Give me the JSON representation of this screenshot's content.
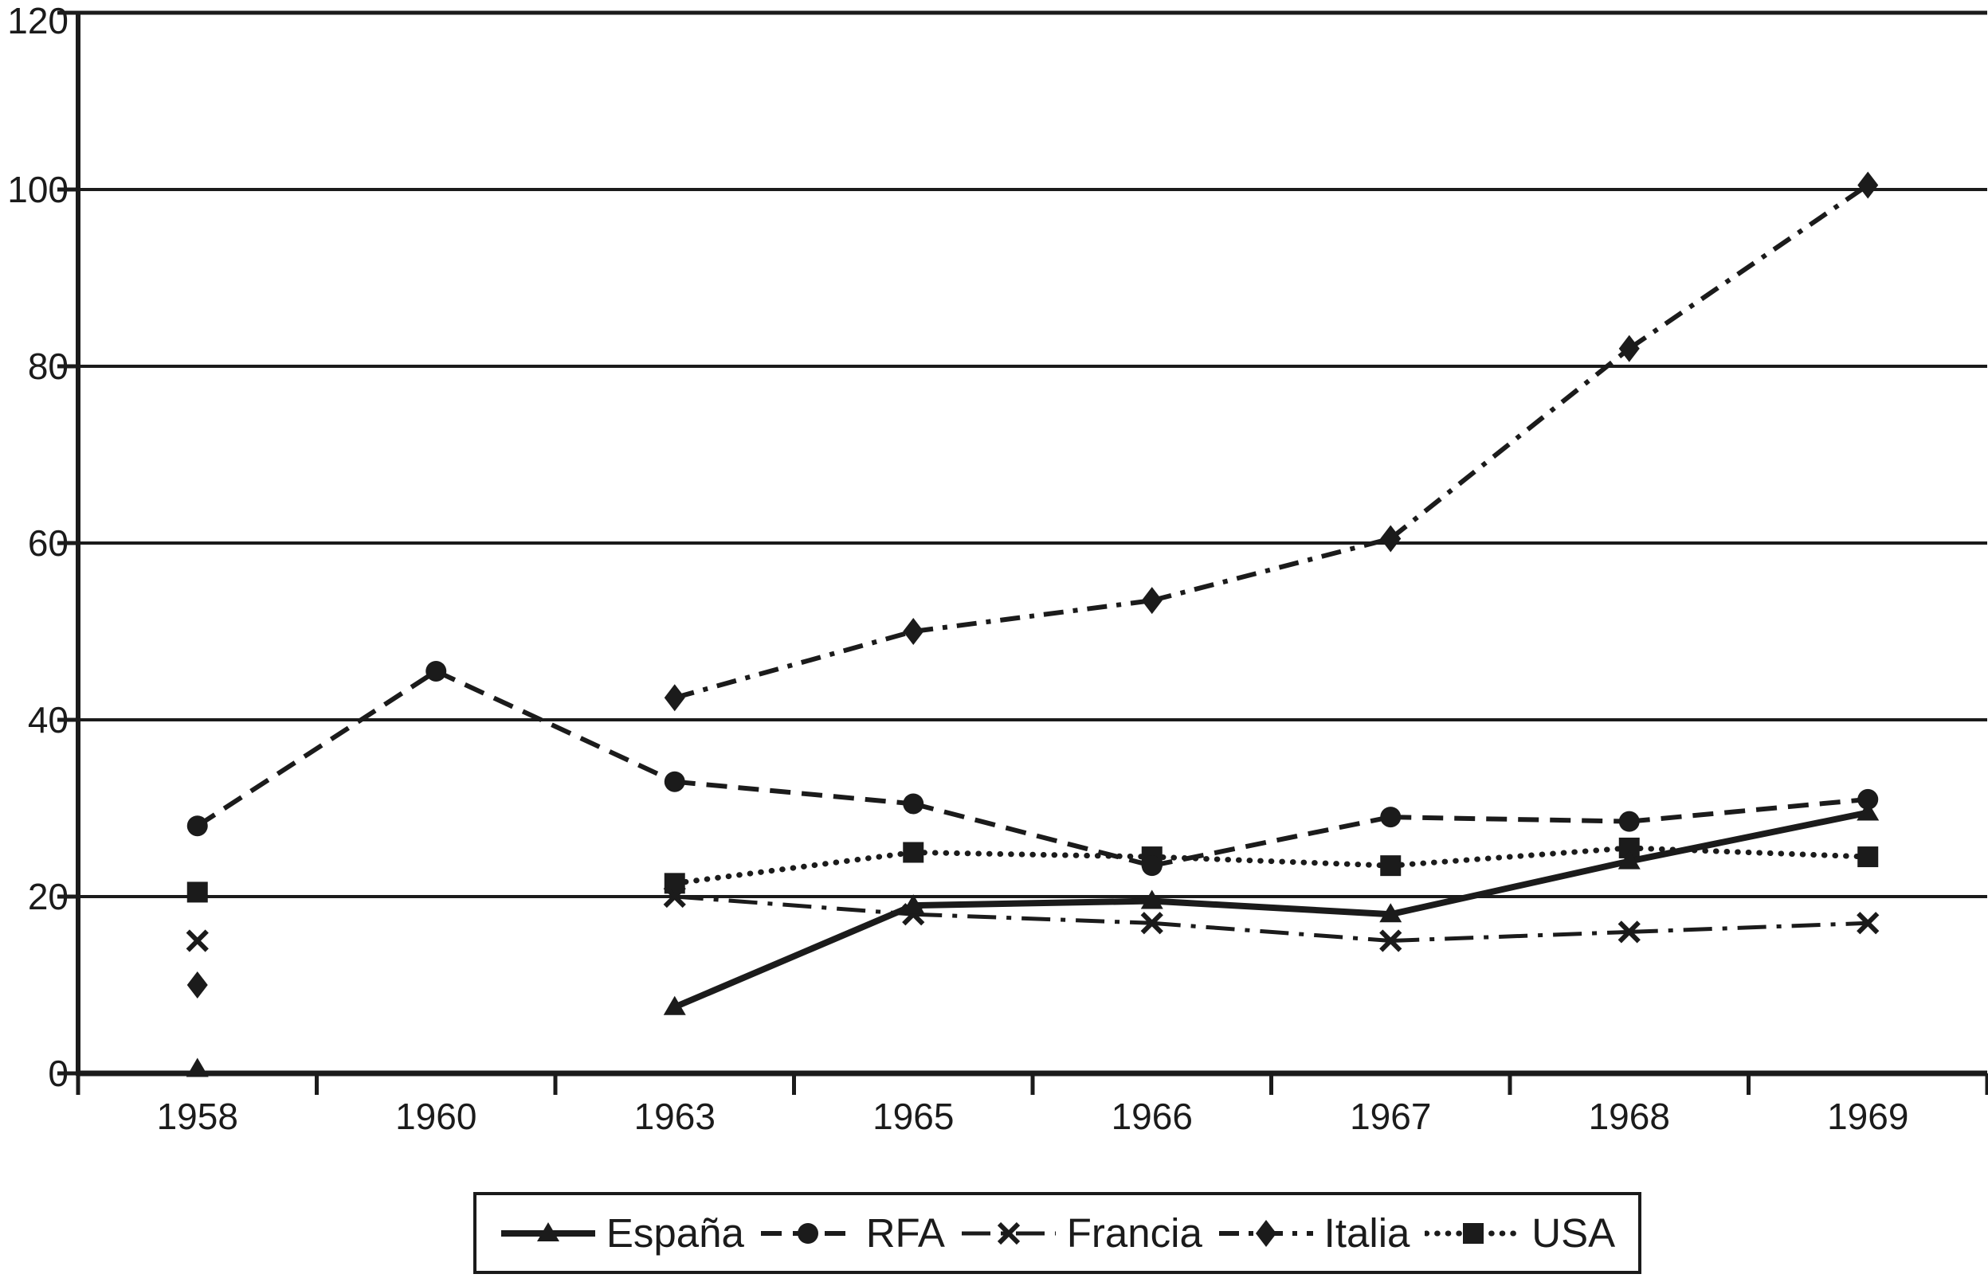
{
  "colors": {
    "ink": "#1b1b1b",
    "background": "#ffffff"
  },
  "chart_data": {
    "type": "line",
    "title": "",
    "xlabel": "",
    "ylabel": "",
    "categories": [
      "1958",
      "1960",
      "1963",
      "1965",
      "1966",
      "1967",
      "1968",
      "1969"
    ],
    "series": [
      {
        "name": "España",
        "line": "solid",
        "marker": "triangle",
        "values": [
          0.5,
          null,
          7.5,
          19,
          19.5,
          18,
          24,
          29.5
        ]
      },
      {
        "name": "RFA",
        "line": "dashed",
        "marker": "circle",
        "values": [
          28,
          45.5,
          33,
          30.5,
          23.5,
          29,
          28.5,
          31
        ]
      },
      {
        "name": "Francia",
        "line": "dashdot",
        "marker": "x",
        "values": [
          15,
          null,
          20,
          18,
          17,
          15,
          16,
          17
        ]
      },
      {
        "name": "Italia",
        "line": "longdashdot",
        "marker": "diamond",
        "values": [
          10,
          null,
          42.5,
          50,
          53.5,
          60.5,
          82,
          100.5
        ]
      },
      {
        "name": "USA",
        "line": "dotted",
        "marker": "square",
        "values": [
          20.5,
          null,
          21.5,
          25,
          24.5,
          23.5,
          25.5,
          24.5
        ]
      }
    ],
    "ylim": [
      0,
      120
    ],
    "yticks": [
      "0",
      "20",
      "40",
      "60",
      "80",
      "100",
      "120"
    ],
    "ytick_step": 20,
    "grid": true,
    "legend_position": "bottom"
  }
}
